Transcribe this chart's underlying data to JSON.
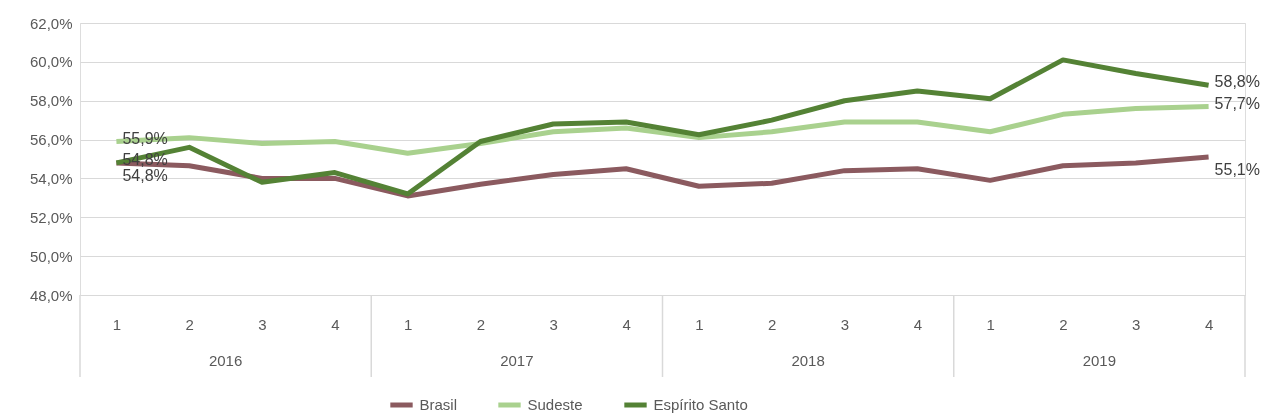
{
  "chart_data": {
    "type": "line",
    "categories": [
      "1",
      "2",
      "3",
      "4",
      "1",
      "2",
      "3",
      "4",
      "1",
      "2",
      "3",
      "4",
      "1",
      "2",
      "3",
      "4"
    ],
    "annotations": [
      "2016",
      "2017",
      "2018",
      "2019"
    ],
    "series": [
      {
        "name": "Brasil",
        "color": "#8b5a5f",
        "values": [
          54.8,
          54.65,
          54.0,
          54.0,
          53.1,
          53.7,
          54.2,
          54.5,
          53.6,
          53.75,
          54.4,
          54.5,
          53.9,
          54.65,
          54.8,
          55.1
        ],
        "value_labels": [
          "54,8%",
          null,
          null,
          null,
          null,
          null,
          null,
          null,
          null,
          null,
          null,
          null,
          null,
          null,
          null,
          "55,1%"
        ]
      },
      {
        "name": "Sudeste",
        "color": "#a9d18e",
        "values": [
          55.9,
          56.1,
          55.8,
          55.9,
          55.3,
          55.8,
          56.4,
          56.6,
          56.1,
          56.4,
          56.9,
          56.9,
          56.4,
          57.3,
          57.6,
          57.7
        ],
        "value_labels": [
          "55,9%",
          null,
          null,
          null,
          null,
          null,
          null,
          null,
          null,
          null,
          null,
          null,
          null,
          null,
          null,
          "57,7%"
        ]
      },
      {
        "name": "Espírito Santo",
        "color": "#548235",
        "values": [
          54.8,
          55.6,
          53.8,
          54.3,
          53.2,
          55.9,
          56.8,
          56.9,
          56.25,
          57.0,
          58.0,
          58.5,
          58.1,
          60.1,
          59.4,
          58.8
        ],
        "value_labels": [
          "54,8%",
          null,
          null,
          null,
          null,
          null,
          null,
          null,
          null,
          null,
          null,
          null,
          null,
          null,
          null,
          "58,8%"
        ]
      }
    ],
    "ylim": [
      48,
      62
    ],
    "yticks": [
      {
        "value": 48,
        "label": "48,0%"
      },
      {
        "value": 50,
        "label": "50,0%"
      },
      {
        "value": 52,
        "label": "52,0%"
      },
      {
        "value": 54,
        "label": "54,0%"
      },
      {
        "value": 56,
        "label": "56,0%"
      },
      {
        "value": 58,
        "label": "58,0%"
      },
      {
        "value": 60,
        "label": "60,0%"
      },
      {
        "value": 62,
        "label": "62,0%"
      }
    ],
    "grid": "y",
    "legend": "bottom",
    "marker": "none",
    "line_style": "solid"
  }
}
